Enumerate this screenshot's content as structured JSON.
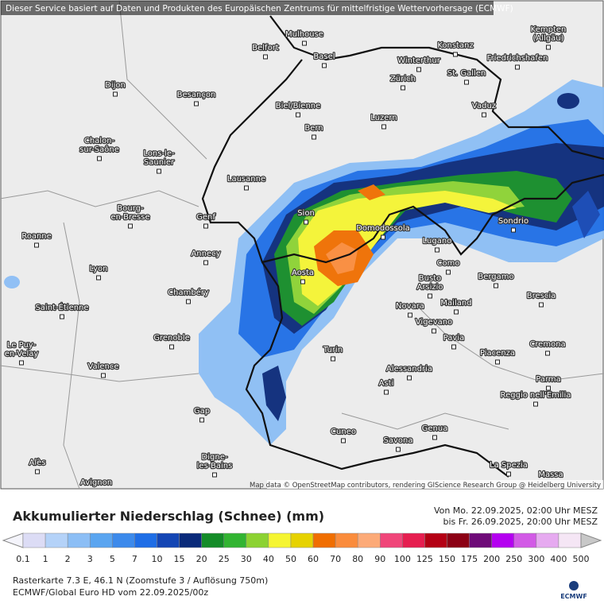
{
  "header": "Dieser Service basiert auf Daten und Produkten des Europäischen Zentrums für mittelfristige Wettervorhersage (ECMWF)",
  "cities": [
    [
      "Mulhouse"
    ],
    [
      "Belfort"
    ],
    [
      "Basel"
    ],
    [
      "Konstanz"
    ],
    [
      "Kempten",
      "(Allgäu)"
    ],
    [
      "Winterthur"
    ],
    [
      "Friedrichshafen"
    ],
    [
      "Zürich"
    ],
    [
      "St. Gallen"
    ],
    [
      "Dijon"
    ],
    [
      "Besançon"
    ],
    [
      "Vaduz"
    ],
    [
      "Biel/Bienne"
    ],
    [
      "Luzern"
    ],
    [
      "Bern"
    ],
    [
      "Chalon-",
      "sur-Saône"
    ],
    [
      "Lons-le-",
      "Saunier"
    ],
    [
      "Lausanne"
    ],
    [
      "Bourg-",
      "en-Bresse"
    ],
    [
      "Sion"
    ],
    [
      "Genf"
    ],
    [
      "Domodossola"
    ],
    [
      "Sondrio"
    ],
    [
      "Roanne"
    ],
    [
      "Lugano"
    ],
    [
      "Annecy"
    ],
    [
      "Como"
    ],
    [
      "Lyon"
    ],
    [
      "Aosta"
    ],
    [
      "Bergamo"
    ],
    [
      "Busto",
      "Arsizio"
    ],
    [
      "Chambéry"
    ],
    [
      "Mailand"
    ],
    [
      "Brescia"
    ],
    [
      "Novara"
    ],
    [
      "Saint-Étienne"
    ],
    [
      "Vigevano"
    ],
    [
      "Grenoble"
    ],
    [
      "Pavia"
    ],
    [
      "Turin"
    ],
    [
      "Le Puy-",
      "en-Velay"
    ],
    [
      "Cremona"
    ],
    [
      "Piacenza"
    ],
    [
      "Valence"
    ],
    [
      "Alessandria"
    ],
    [
      "Parma"
    ],
    [
      "Asti"
    ],
    [
      "Reggio nell'Emilia"
    ],
    [
      "Gap"
    ],
    [
      "Cuneo"
    ],
    [
      "Genua"
    ],
    [
      "Savona"
    ],
    [
      "Digne-",
      "les-Bains"
    ],
    [
      "Alès"
    ],
    [
      "La Spezia"
    ],
    [
      "Massa"
    ],
    [
      "Avignon"
    ]
  ],
  "attribution": "Map data © OpenStreetMap contributors, rendering GIScience Research Group @ Heidelberg University",
  "title": "Akkumulierter Niederschlag (Schnee) (mm)",
  "period": [
    "Von Mo. 22.09.2025, 02:00 Uhr MESZ",
    "bis Fr. 26.09.2025, 20:00 Uhr MESZ"
  ],
  "legend": [
    {
      "value": 0.1,
      "color": "#dcdcf5"
    },
    {
      "value": 1,
      "color": "#b4d2f8"
    },
    {
      "value": 2,
      "color": "#8cbef5"
    },
    {
      "value": 3,
      "color": "#5aa5f0"
    },
    {
      "value": 5,
      "color": "#3c8aeb"
    },
    {
      "value": 7,
      "color": "#1e6ee6"
    },
    {
      "value": 10,
      "color": "#1446b4"
    },
    {
      "value": 15,
      "color": "#0a2a7a"
    },
    {
      "value": 20,
      "color": "#148c28"
    },
    {
      "value": 25,
      "color": "#32b432"
    },
    {
      "value": 30,
      "color": "#8cd232"
    },
    {
      "value": 40,
      "color": "#f5f532"
    },
    {
      "value": 50,
      "color": "#e6d200"
    },
    {
      "value": 60,
      "color": "#f06e00"
    },
    {
      "value": 70,
      "color": "#fa8c3c"
    },
    {
      "value": 80,
      "color": "#fcaa78"
    },
    {
      "value": 90,
      "color": "#f0467a"
    },
    {
      "value": 100,
      "color": "#e61e50"
    },
    {
      "value": 125,
      "color": "#b40014"
    },
    {
      "value": 150,
      "color": "#8c0014"
    },
    {
      "value": 175,
      "color": "#6e0a78"
    },
    {
      "value": 200,
      "color": "#b400f0"
    },
    {
      "value": 250,
      "color": "#d25ae6"
    },
    {
      "value": 300,
      "color": "#e6aaf0"
    },
    {
      "value": 400,
      "color": "#f5e6f5"
    },
    {
      "value": 500,
      "color": "#c8c8c8"
    }
  ],
  "footer": [
    "Rasterkarte 7.3 E, 46.1 N (Zoomstufe 3 / Auflösung 750m)",
    "ECMWF/Global Euro HD vom  22.09.2025/00z"
  ],
  "logo": "ECMWF"
}
